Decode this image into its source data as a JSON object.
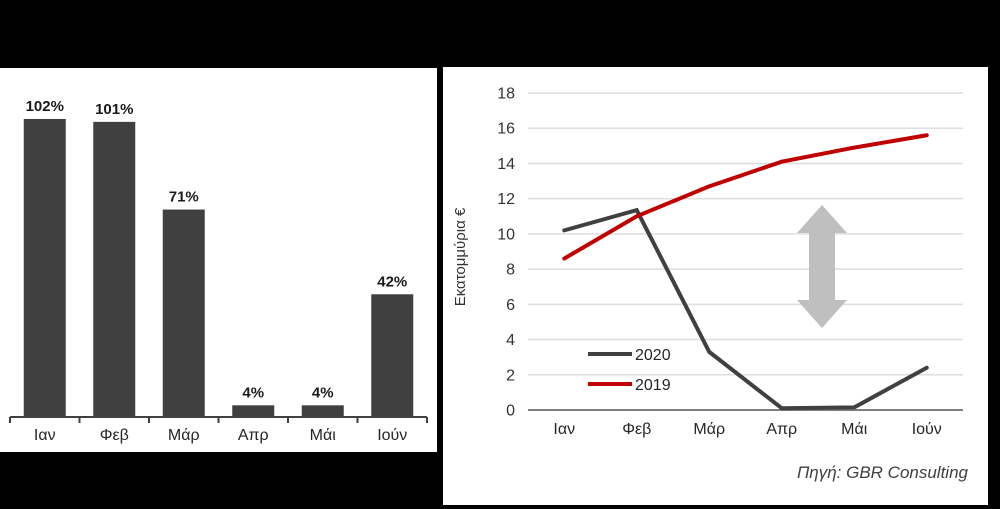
{
  "source_note": "Πηγή: GBR Consulting",
  "colors": {
    "background": "#000000",
    "panel": "#ffffff",
    "bar": "#404040",
    "series_2020": "#404040",
    "series_2019": "#C00000",
    "arrow": "#BFBFBF",
    "gridline": "#DEDEDE",
    "baseline": "#7F7F7F",
    "bar_axis": "#404040"
  },
  "chart_data": [
    {
      "id": "occupancy-bar-chart",
      "type": "bar",
      "categories": [
        "Ιαν",
        "Φεβ",
        "Μάρ",
        "Απρ",
        "Μάι",
        "Ιούν"
      ],
      "values": [
        102,
        101,
        71,
        4,
        4,
        42
      ],
      "value_labels": [
        "102%",
        "101%",
        "71%",
        "4%",
        "4%",
        "42%"
      ],
      "title": "",
      "xlabel": "",
      "ylabel": "",
      "ylim": [
        0,
        110
      ],
      "grid": false,
      "legend": "none"
    },
    {
      "id": "revenue-line-chart",
      "type": "line",
      "categories": [
        "Ιαν",
        "Φεβ",
        "Μάρ",
        "Απρ",
        "Μάι",
        "Ιούν"
      ],
      "series": [
        {
          "name": "2020",
          "values": [
            10.2,
            11.35,
            3.3,
            0.1,
            0.15,
            2.4
          ],
          "color": "#404040"
        },
        {
          "name": "2019",
          "values": [
            8.6,
            11.0,
            12.7,
            14.1,
            14.9,
            15.6
          ],
          "color": "#C00000"
        }
      ],
      "title": "",
      "xlabel": "",
      "ylabel": "Εκατομμύρια €",
      "ylim": [
        0,
        18
      ],
      "yticks": [
        0,
        2,
        4,
        6,
        8,
        10,
        12,
        14,
        16,
        18
      ],
      "grid": true,
      "legend_position": "inside-bottom-left",
      "annotations": [
        {
          "type": "double-headed-vertical-arrow",
          "color": "#BFBFBF"
        }
      ]
    }
  ]
}
